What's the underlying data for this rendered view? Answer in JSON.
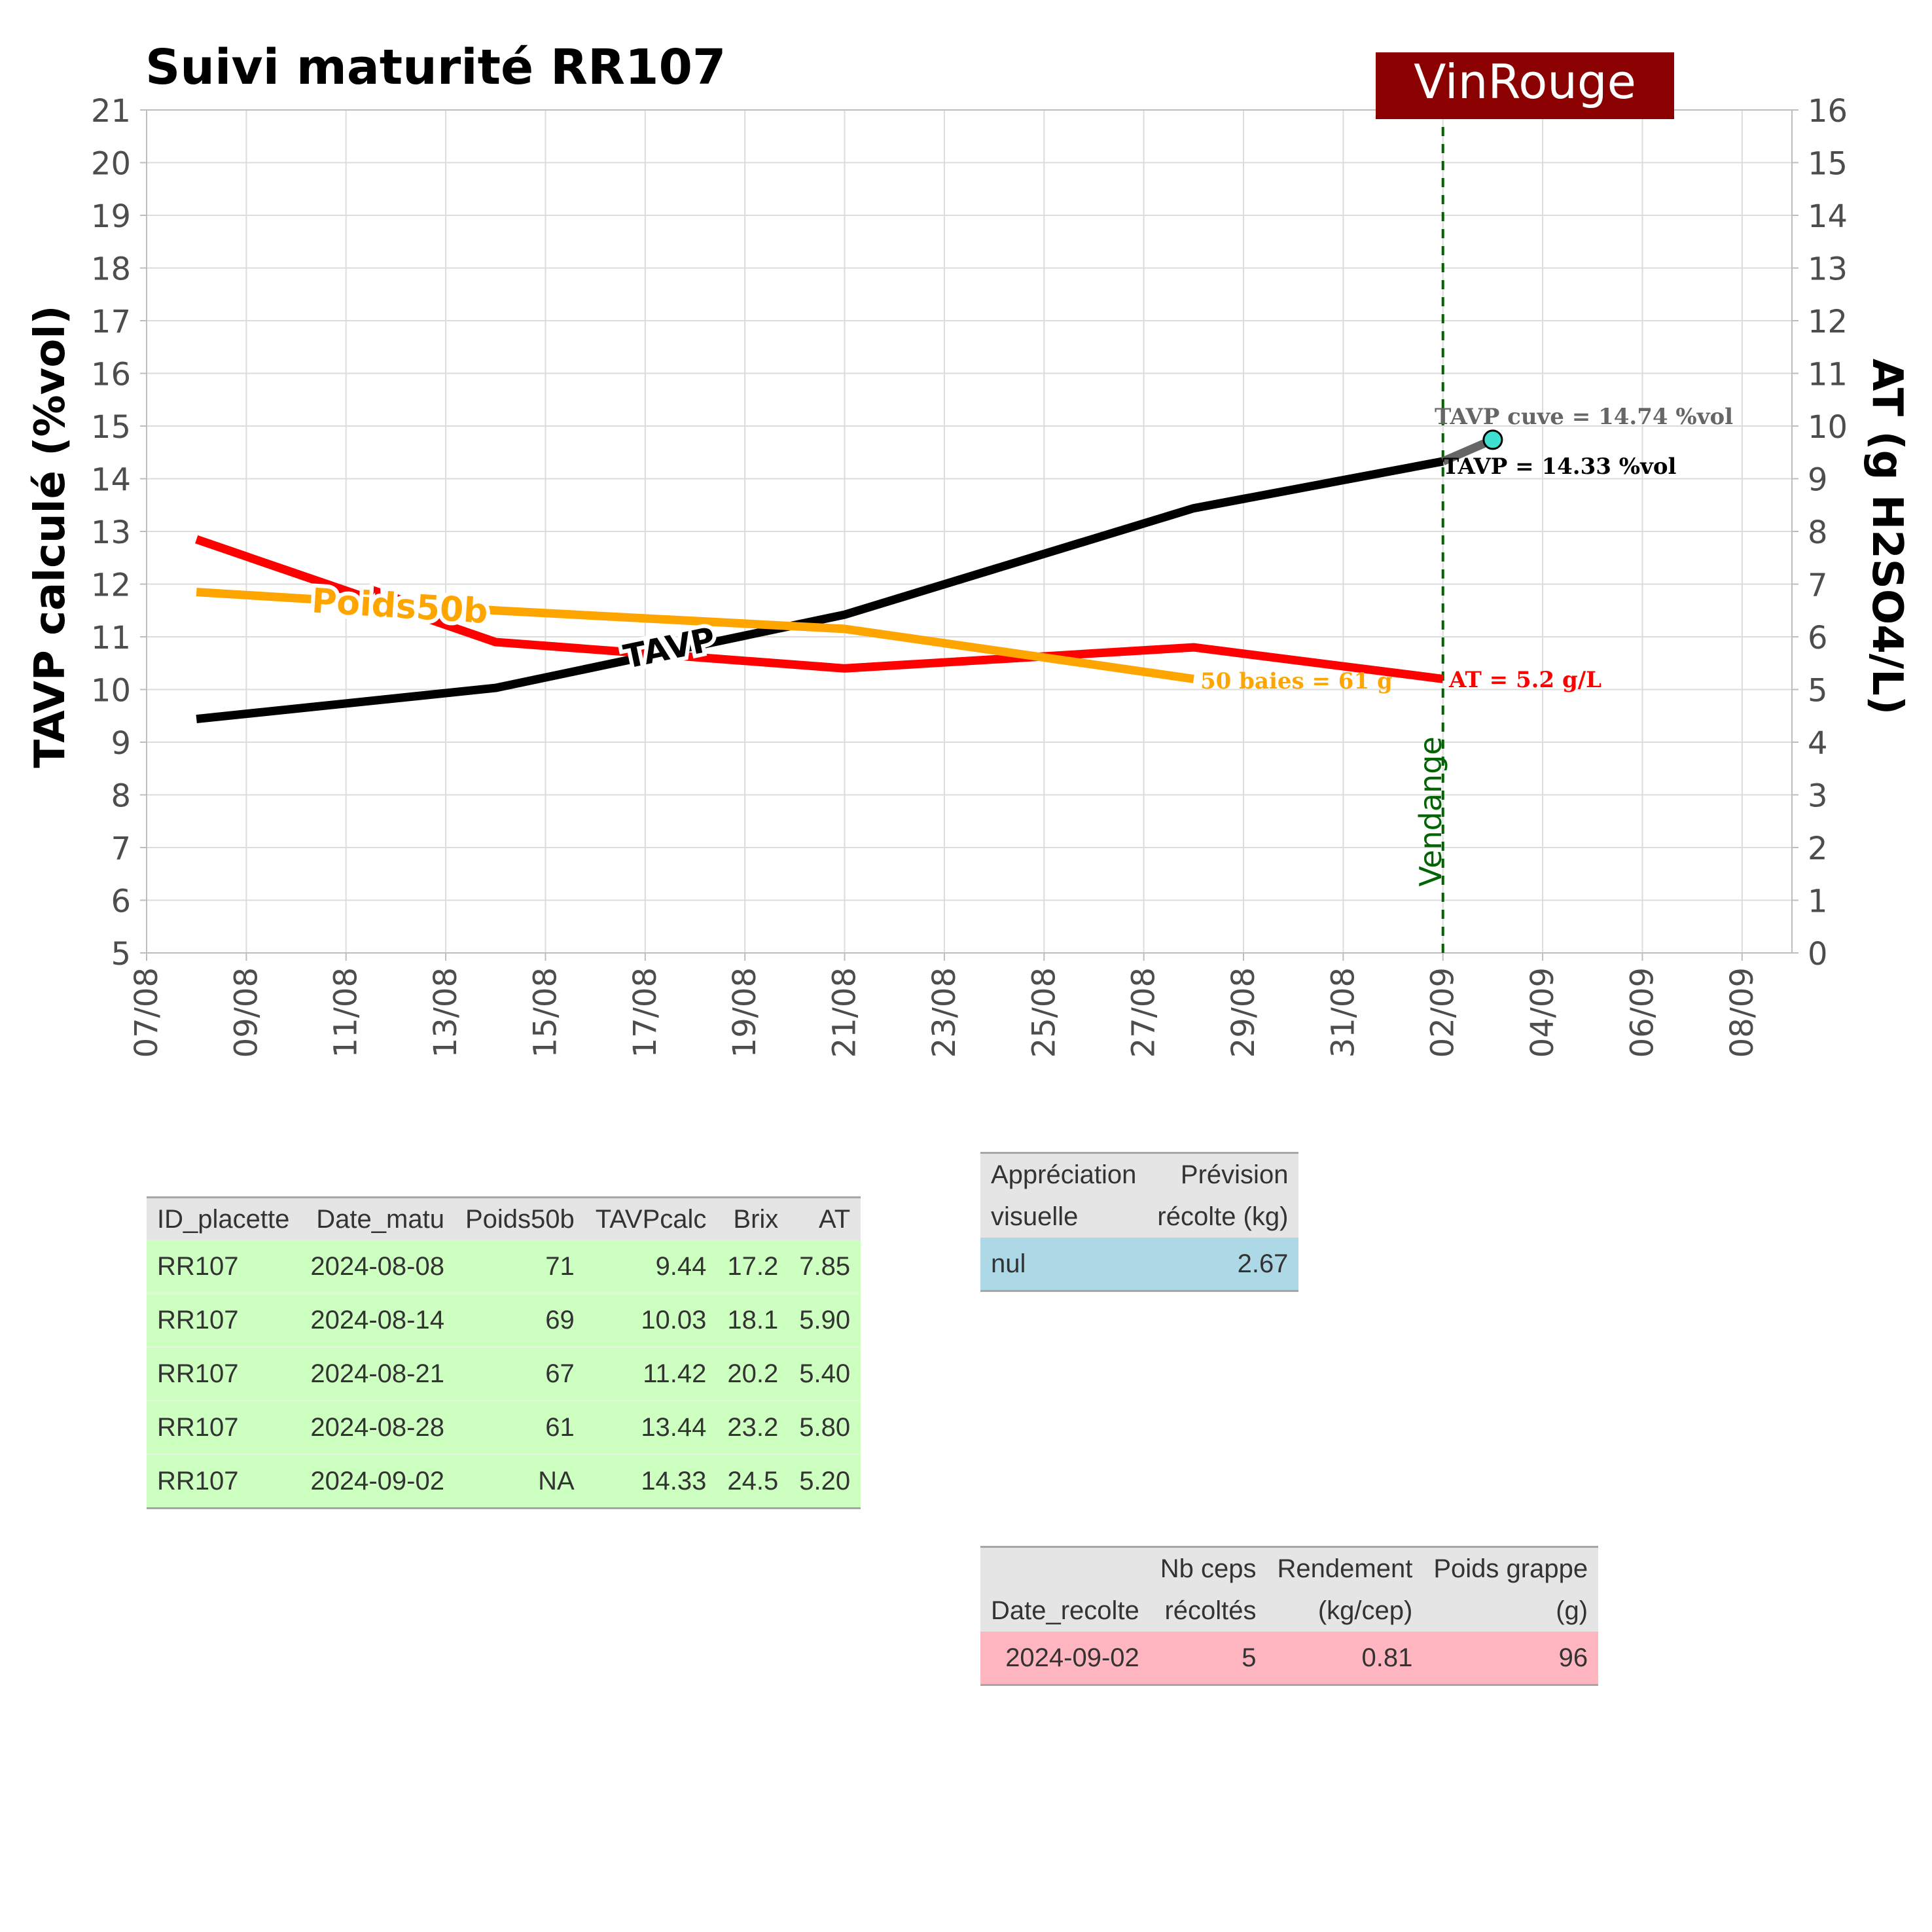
{
  "chart_data": {
    "type": "line",
    "title": "Suivi maturité  RR107",
    "brand_label": "VinRouge",
    "ylabel_left": "TAVP calculé (%vol)",
    "ylabel_right": "AT (g H2SO4/L)",
    "ylim_left": [
      5,
      21
    ],
    "ylim_right": [
      0,
      16
    ],
    "yticks_left": [
      "5",
      "6",
      "7",
      "8",
      "9",
      "10",
      "11",
      "12",
      "13",
      "14",
      "15",
      "16",
      "17",
      "18",
      "19",
      "20",
      "21"
    ],
    "yticks_right": [
      "0",
      "1",
      "2",
      "3",
      "4",
      "5",
      "6",
      "7",
      "8",
      "9",
      "10",
      "11",
      "12",
      "13",
      "14",
      "15",
      "16"
    ],
    "x_axis": "date",
    "xlim": [
      "2024-08-07",
      "2024-09-09"
    ],
    "xticks": [
      {
        "date": "2024-08-07",
        "label": "07/08"
      },
      {
        "date": "2024-08-09",
        "label": "09/08"
      },
      {
        "date": "2024-08-11",
        "label": "11/08"
      },
      {
        "date": "2024-08-13",
        "label": "13/08"
      },
      {
        "date": "2024-08-15",
        "label": "15/08"
      },
      {
        "date": "2024-08-17",
        "label": "17/08"
      },
      {
        "date": "2024-08-19",
        "label": "19/08"
      },
      {
        "date": "2024-08-21",
        "label": "21/08"
      },
      {
        "date": "2024-08-23",
        "label": "23/08"
      },
      {
        "date": "2024-08-25",
        "label": "25/08"
      },
      {
        "date": "2024-08-27",
        "label": "27/08"
      },
      {
        "date": "2024-08-29",
        "label": "29/08"
      },
      {
        "date": "2024-08-31",
        "label": "31/08"
      },
      {
        "date": "2024-09-02",
        "label": "02/09"
      },
      {
        "date": "2024-09-04",
        "label": "04/09"
      },
      {
        "date": "2024-09-06",
        "label": "06/09"
      },
      {
        "date": "2024-09-08",
        "label": "08/09"
      }
    ],
    "grid": true,
    "series": [
      {
        "name": "TAVP",
        "axis": "left",
        "color": "#000000",
        "x": [
          "2024-08-08",
          "2024-08-14",
          "2024-08-21",
          "2024-08-28",
          "2024-09-02"
        ],
        "y": [
          9.44,
          10.03,
          11.42,
          13.44,
          14.33
        ]
      },
      {
        "name": "AT",
        "axis": "right",
        "color": "#ff0000",
        "x": [
          "2024-08-08",
          "2024-08-14",
          "2024-08-21",
          "2024-08-28",
          "2024-09-02"
        ],
        "y": [
          7.85,
          5.9,
          5.4,
          5.8,
          5.2
        ]
      },
      {
        "name": "Poids50b",
        "axis": "left",
        "color": "#ffa500",
        "x": [
          "2024-08-08",
          "2024-08-14",
          "2024-08-21",
          "2024-08-28"
        ],
        "y": [
          11.85,
          11.5,
          11.15,
          10.2
        ]
      }
    ],
    "tavp_cuve": {
      "x": "2024-09-03",
      "y": 14.74,
      "color": "#40e0d0",
      "line_color": "#666666"
    },
    "vendange": {
      "x": "2024-09-02",
      "label": "Vendange",
      "color": "#006400"
    },
    "annotations": {
      "tavp_cuve": "TAVP cuve = 14.74 %vol",
      "tavp": "TAVP = 14.33 %vol",
      "at": "AT = 5.2 g/L",
      "poids": "50 baies = 61 g"
    }
  },
  "table_matu": {
    "headers": [
      "ID_placette",
      "Date_matu",
      "Poids50b",
      "TAVPcalc",
      "Brix",
      "AT"
    ],
    "rows": [
      [
        "RR107",
        "2024-08-08",
        "71",
        "9.44",
        "17.2",
        "7.85"
      ],
      [
        "RR107",
        "2024-08-14",
        "69",
        "10.03",
        "18.1",
        "5.90"
      ],
      [
        "RR107",
        "2024-08-21",
        "67",
        "11.42",
        "20.2",
        "5.40"
      ],
      [
        "RR107",
        "2024-08-28",
        "61",
        "13.44",
        "23.2",
        "5.80"
      ],
      [
        "RR107",
        "2024-09-02",
        "NA",
        "14.33",
        "24.5",
        "5.20"
      ]
    ]
  },
  "table_visu": {
    "headers": [
      [
        "Appréciation",
        "visuelle"
      ],
      [
        "Prévision",
        "récolte (kg)"
      ]
    ],
    "rows": [
      [
        "nul",
        "2.67"
      ]
    ]
  },
  "table_recolte": {
    "headers": [
      [
        "",
        "Date_recolte"
      ],
      [
        "Nb ceps",
        "récoltés"
      ],
      [
        "Rendement",
        "(kg/cep)"
      ],
      [
        "Poids grappe",
        "(g)"
      ]
    ],
    "rows": [
      [
        "2024-09-02",
        "5",
        "0.81",
        "96"
      ]
    ]
  }
}
